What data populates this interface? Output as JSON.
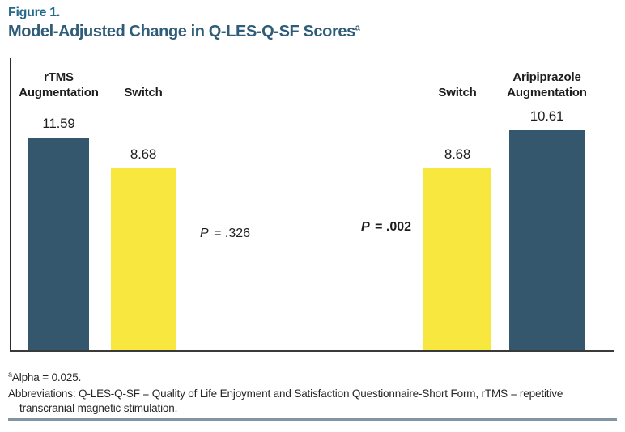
{
  "figure": {
    "label": "Figure 1.",
    "title": "Model-Adjusted Change in Q-LES-Q-SF Scores",
    "title_superscript": "a"
  },
  "colors": {
    "dark_bar": "#35576E",
    "yellow_bar": "#F7E73F",
    "figure_label_text": "#24698A",
    "title_text": "#2F5C78",
    "axis_line": "#2B2B2B",
    "bottom_rule": "#8195A5"
  },
  "chart_data": {
    "type": "bar",
    "title": "Model-Adjusted Change in Q-LES-Q-SF Scores",
    "categories": [
      "rTMS Augmentation",
      "Switch",
      "Switch",
      "Aripiprazole Augmentation"
    ],
    "values": [
      11.59,
      8.68,
      8.68,
      10.61
    ],
    "bars": [
      {
        "label_lines": [
          "rTMS",
          "Augmentation"
        ],
        "value": "11.59",
        "color_key": "dark_bar"
      },
      {
        "label_lines": [
          "Switch"
        ],
        "value": "8.68",
        "color_key": "yellow_bar"
      },
      {
        "label_lines": [
          "Switch"
        ],
        "value": "8.68",
        "color_key": "yellow_bar"
      },
      {
        "label_lines": [
          "Aripiprazole",
          "Augmentation"
        ],
        "value": "10.61",
        "color_key": "dark_bar"
      }
    ],
    "annotations": [
      {
        "symbol": "P",
        "text": " = .326",
        "bold": false
      },
      {
        "symbol": "P",
        "text": " = .002",
        "bold": true
      }
    ],
    "legend": "none",
    "grid": false,
    "y_axis_ticks": "none",
    "x_axis_ticks": "none"
  },
  "footnotes": {
    "alpha_superscript": "a",
    "alpha_text": "Alpha = 0.025.",
    "abbreviations_line1": "Abbreviations: Q-LES-Q-SF = Quality of Life Enjoyment and Satisfaction Questionnaire-Short Form, rTMS = repetitive",
    "abbreviations_line2": "transcranial magnetic stimulation."
  }
}
